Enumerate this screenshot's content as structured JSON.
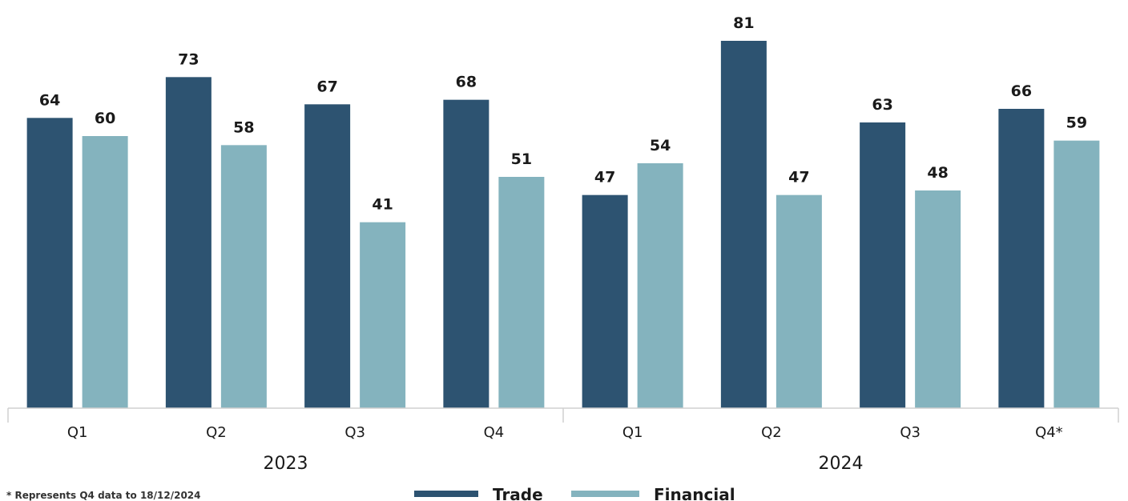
{
  "chart_data": {
    "type": "bar",
    "groups": [
      {
        "label": "2023",
        "categories": [
          "Q1",
          "Q2",
          "Q3",
          "Q4"
        ]
      },
      {
        "label": "2024",
        "categories": [
          "Q1",
          "Q2",
          "Q3",
          "Q4*"
        ]
      }
    ],
    "series": [
      {
        "name": "Trade",
        "color": "#2d5371",
        "values": [
          64,
          73,
          67,
          68,
          47,
          81,
          63,
          66
        ]
      },
      {
        "name": "Financial",
        "color": "#84b3be",
        "values": [
          60,
          58,
          41,
          51,
          54,
          47,
          48,
          59
        ]
      }
    ],
    "ylim": [
      0,
      90
    ],
    "grid": false,
    "data_labels": true,
    "legend_position": "bottom-center"
  },
  "footnote": "* Represents Q4 data to 18/12/2024"
}
